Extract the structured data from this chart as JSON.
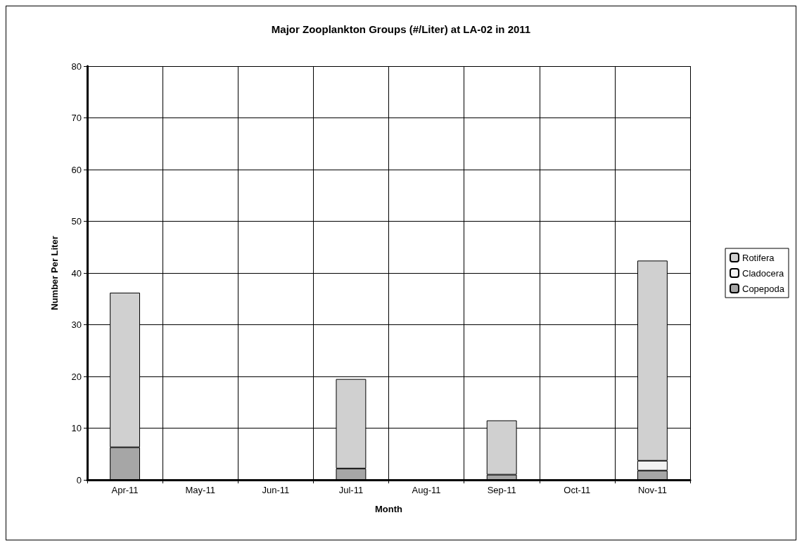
{
  "chart_data": {
    "type": "bar",
    "title": "Major Zooplankton Groups (#/Liter) at LA-02 in 2011",
    "xlabel": "Month",
    "ylabel": "Number Per Liter",
    "categories": [
      "Apr-11",
      "May-11",
      "Jun-11",
      "Jul-11",
      "Aug-11",
      "Sep-11",
      "Oct-11",
      "Nov-11"
    ],
    "stacked": true,
    "series": [
      {
        "name": "Copepoda",
        "color": "#a6a6a6",
        "values": [
          6.3,
          0,
          0,
          2.2,
          0,
          1.0,
          0,
          1.8
        ]
      },
      {
        "name": "Cladocera",
        "color": "#f2f2f2",
        "values": [
          0,
          0,
          0,
          0,
          0,
          0,
          0,
          1.9
        ]
      },
      {
        "name": "Rotifera",
        "color": "#d0d0d0",
        "values": [
          29.9,
          0,
          0,
          17.3,
          0,
          10.5,
          0,
          38.7
        ]
      }
    ],
    "ylim": [
      0,
      80
    ],
    "yticks": [
      0,
      10,
      20,
      30,
      40,
      50,
      60,
      70,
      80
    ],
    "grid": true,
    "legend": "right"
  }
}
